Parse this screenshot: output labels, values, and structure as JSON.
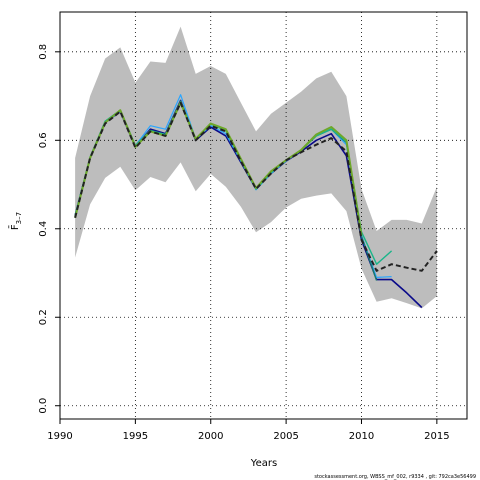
{
  "chart_data": {
    "type": "line",
    "title": "",
    "xlabel": "Years",
    "ylabel": "F̄",
    "ylabel_sub": "3–7",
    "xlim": [
      1990,
      2017
    ],
    "ylim": [
      -0.03,
      0.89
    ],
    "xticks": [
      1990,
      1995,
      2000,
      2005,
      2010,
      2015
    ],
    "yticks": [
      0.0,
      0.2,
      0.4,
      0.6,
      0.8
    ],
    "ytick_labels": [
      "0.0",
      "0.2",
      "0.4",
      "0.6",
      "0.8"
    ],
    "grid": true,
    "band": {
      "color": "#bdbdbd",
      "x": [
        1991,
        1992,
        1993,
        1994,
        1995,
        1996,
        1997,
        1998,
        1999,
        2000,
        2001,
        2002,
        2003,
        2004,
        2005,
        2006,
        2007,
        2008,
        2009,
        2010,
        2011,
        2012,
        2013,
        2014,
        2015
      ],
      "upper": [
        0.56,
        0.7,
        0.785,
        0.81,
        0.73,
        0.778,
        0.775,
        0.857,
        0.75,
        0.768,
        0.75,
        0.685,
        0.62,
        0.66,
        0.685,
        0.71,
        0.74,
        0.755,
        0.7,
        0.49,
        0.395,
        0.42,
        0.42,
        0.412,
        0.495
      ],
      "lower": [
        0.335,
        0.455,
        0.515,
        0.54,
        0.487,
        0.517,
        0.505,
        0.55,
        0.485,
        0.524,
        0.495,
        0.45,
        0.392,
        0.415,
        0.448,
        0.468,
        0.475,
        0.48,
        0.44,
        0.31,
        0.235,
        0.243,
        0.232,
        0.22,
        0.248
      ]
    },
    "series": [
      {
        "color": "#0a0a8a",
        "width": 1.6,
        "dash": "",
        "x": [
          1991,
          1992,
          1993,
          1994,
          1995,
          1996,
          1997,
          1998,
          1999,
          2000,
          2001,
          2002,
          2003,
          2004,
          2005,
          2006,
          2007,
          2008,
          2009,
          2010,
          2011,
          2012,
          2013,
          2014
        ],
        "values": [
          0.43,
          0.56,
          0.64,
          0.665,
          0.585,
          0.625,
          0.615,
          0.69,
          0.6,
          0.63,
          0.61,
          0.55,
          0.49,
          0.525,
          0.553,
          0.575,
          0.6,
          0.615,
          0.565,
          0.375,
          0.285,
          0.285,
          0.255,
          0.222
        ]
      },
      {
        "color": "#2aa6ff",
        "width": 1.2,
        "dash": "",
        "x": [
          1991,
          1992,
          1993,
          1994,
          1995,
          1996,
          1997,
          1998,
          1999,
          2000,
          2001,
          2002,
          2003,
          2004,
          2005,
          2006,
          2007,
          2008,
          2009,
          2010,
          2011,
          2012
        ],
        "values": [
          0.43,
          0.56,
          0.64,
          0.665,
          0.588,
          0.633,
          0.625,
          0.703,
          0.603,
          0.633,
          0.615,
          0.553,
          0.488,
          0.525,
          0.553,
          0.578,
          0.61,
          0.625,
          0.59,
          0.385,
          0.29,
          0.292
        ]
      },
      {
        "color": "#1a7a6e",
        "width": 1.4,
        "dash": "",
        "x": [
          1991,
          1992,
          1993,
          1994,
          1995,
          1996,
          1997,
          1998,
          1999,
          2000,
          2001,
          2002,
          2003,
          2004,
          2005,
          2006,
          2007,
          2008,
          2009,
          2010,
          2011
        ],
        "values": [
          0.43,
          0.562,
          0.643,
          0.668,
          0.588,
          0.622,
          0.613,
          0.688,
          0.603,
          0.637,
          0.622,
          0.555,
          0.49,
          0.527,
          0.555,
          0.578,
          0.61,
          0.625,
          0.595,
          0.383,
          0.283
        ]
      },
      {
        "color": "#1ab58a",
        "width": 1.4,
        "dash": "",
        "x": [
          1991,
          1992,
          1993,
          1994,
          1995,
          1996,
          1997,
          1998,
          1999,
          2000,
          2001,
          2002,
          2003,
          2004,
          2005,
          2006,
          2007,
          2008,
          2009,
          2010,
          2011,
          2012
        ],
        "values": [
          0.43,
          0.562,
          0.643,
          0.668,
          0.588,
          0.622,
          0.613,
          0.688,
          0.603,
          0.637,
          0.622,
          0.555,
          0.49,
          0.527,
          0.555,
          0.578,
          0.61,
          0.625,
          0.597,
          0.393,
          0.32,
          0.35
        ]
      },
      {
        "color": "#6ea82a",
        "width": 2.0,
        "dash": "",
        "x": [
          1991,
          1992,
          1993,
          1994,
          1995,
          1996,
          1997,
          1998,
          1999,
          2000,
          2001,
          2002,
          2003,
          2004,
          2005,
          2006,
          2007,
          2008,
          2009,
          2010
        ],
        "values": [
          0.425,
          0.56,
          0.64,
          0.668,
          0.585,
          0.62,
          0.61,
          0.685,
          0.603,
          0.638,
          0.625,
          0.558,
          0.492,
          0.53,
          0.555,
          0.578,
          0.613,
          0.63,
          0.6,
          0.385
        ]
      },
      {
        "color": "#222222",
        "width": 2.0,
        "dash": "5,3",
        "x": [
          1991,
          1992,
          1993,
          1994,
          1995,
          1996,
          1997,
          1998,
          1999,
          2000,
          2001,
          2002,
          2003,
          2004,
          2005,
          2006,
          2007,
          2008,
          2009,
          2010,
          2011,
          2012,
          2013,
          2014,
          2015
        ],
        "values": [
          0.425,
          0.56,
          0.638,
          0.665,
          0.583,
          0.62,
          0.61,
          0.685,
          0.6,
          0.633,
          0.62,
          0.553,
          0.49,
          0.525,
          0.555,
          0.573,
          0.59,
          0.605,
          0.575,
          0.375,
          0.305,
          0.32,
          0.312,
          0.305,
          0.35
        ]
      }
    ]
  },
  "footer": {
    "text": "stockassessment.org, WBSS_mf_002, r9334 , git: 792ca3e56499"
  }
}
